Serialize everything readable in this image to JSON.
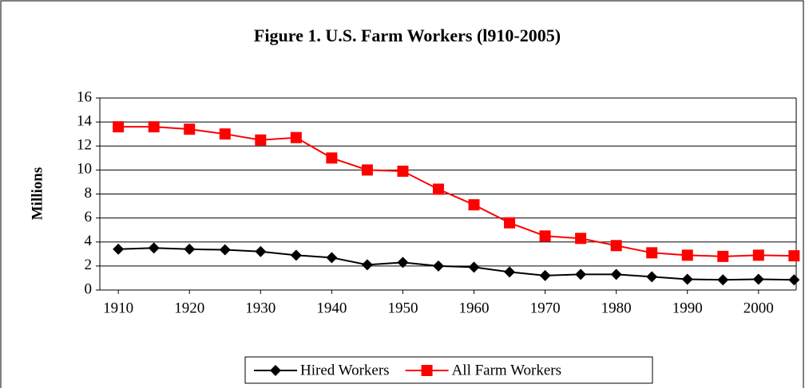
{
  "chart_data": {
    "type": "line",
    "title": "Figure 1. U.S. Farm Workers (l910-2005)",
    "y_label": "Millions",
    "x": [
      1910,
      1915,
      1920,
      1925,
      1930,
      1935,
      1940,
      1945,
      1950,
      1955,
      1960,
      1965,
      1970,
      1975,
      1980,
      1985,
      1990,
      1995,
      2000,
      2005
    ],
    "series": [
      {
        "name": "Hired Workers",
        "color": "#000000",
        "marker": "diamond",
        "values": [
          3.4,
          3.5,
          3.4,
          3.35,
          3.2,
          2.9,
          2.7,
          2.1,
          2.3,
          2.0,
          1.9,
          1.5,
          1.2,
          1.3,
          1.3,
          1.1,
          0.9,
          0.85,
          0.9,
          0.85
        ]
      },
      {
        "name": "All Farm Workers",
        "color": "#ff0000",
        "marker": "square",
        "values": [
          13.6,
          13.6,
          13.4,
          13.0,
          12.5,
          12.7,
          11.0,
          10.0,
          9.9,
          8.4,
          7.1,
          5.6,
          4.5,
          4.3,
          3.7,
          3.1,
          2.9,
          2.8,
          2.9,
          2.85
        ]
      }
    ],
    "xlim": [
      1907.4,
      2005.3
    ],
    "xticks": [
      1910,
      1920,
      1930,
      1940,
      1950,
      1960,
      1970,
      1980,
      1990,
      2000
    ],
    "ylim": [
      0,
      16
    ],
    "yticks": [
      0,
      2,
      4,
      6,
      8,
      10,
      12,
      14,
      16
    ],
    "grid": true,
    "legend": "bottom"
  }
}
